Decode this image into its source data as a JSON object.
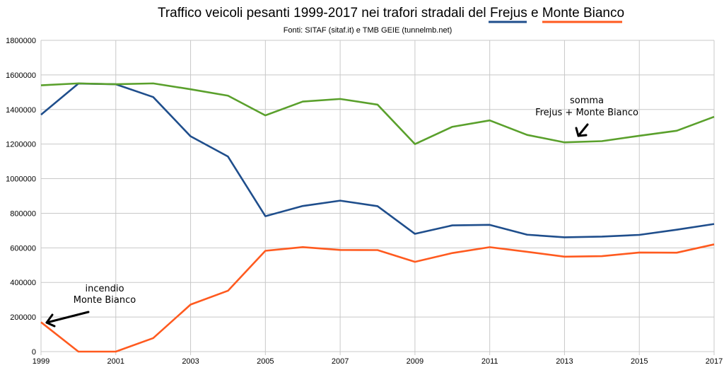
{
  "chart_data": {
    "type": "line",
    "title": {
      "prefix": "Traffico veicoli pesanti 1999-2017 nei trafori stradali del ",
      "frejus": "Frejus",
      "middle": " e ",
      "monte_bianco": "Monte Bianco"
    },
    "subtitle": "Fonti: SITAF (sitaf.it) e TMB GEIE (tunnelmb.net)",
    "x": [
      1999,
      2000,
      2001,
      2002,
      2003,
      2004,
      2005,
      2006,
      2007,
      2008,
      2009,
      2010,
      2011,
      2012,
      2013,
      2014,
      2015,
      2016,
      2017
    ],
    "x_tick_labels": [
      "1999",
      "2001",
      "2003",
      "2005",
      "2007",
      "2009",
      "2011",
      "2013",
      "2015",
      "2017"
    ],
    "y_tick_labels": [
      "0",
      "200000",
      "400000",
      "600000",
      "800000",
      "1000000",
      "1200000",
      "1400000",
      "1600000",
      "1800000"
    ],
    "xlim": [
      1999,
      2017
    ],
    "ylim": [
      0,
      1800000
    ],
    "grid": true,
    "series": [
      {
        "name": "Frejus",
        "color": "#1f4e8c",
        "values": [
          1370000,
          1550000,
          1546000,
          1472000,
          1245000,
          1128000,
          783000,
          842000,
          873000,
          841000,
          681000,
          730000,
          733000,
          676000,
          661000,
          665000,
          675000,
          705000,
          738000
        ]
      },
      {
        "name": "Monte Bianco",
        "color": "#ff5a1f",
        "values": [
          170000,
          0,
          0,
          78000,
          272000,
          352000,
          583000,
          604000,
          588000,
          587000,
          519000,
          570000,
          604000,
          577000,
          549000,
          552000,
          573000,
          572000,
          620000
        ]
      },
      {
        "name": "somma",
        "color": "#5aa02c",
        "values": [
          1540000,
          1551000,
          1546000,
          1551000,
          1517000,
          1480000,
          1366000,
          1446000,
          1461000,
          1428000,
          1200000,
          1300000,
          1337000,
          1253000,
          1210000,
          1217000,
          1248000,
          1277000,
          1358000
        ]
      }
    ],
    "annotations": [
      {
        "lines": [
          "incendio",
          "Monte Bianco"
        ],
        "points_to": {
          "x": 1999,
          "y": 170000
        }
      },
      {
        "lines": [
          "somma",
          "Frejus + Monte Bianco"
        ],
        "points_to": {
          "x": 2013,
          "y": 1210000
        }
      }
    ]
  }
}
